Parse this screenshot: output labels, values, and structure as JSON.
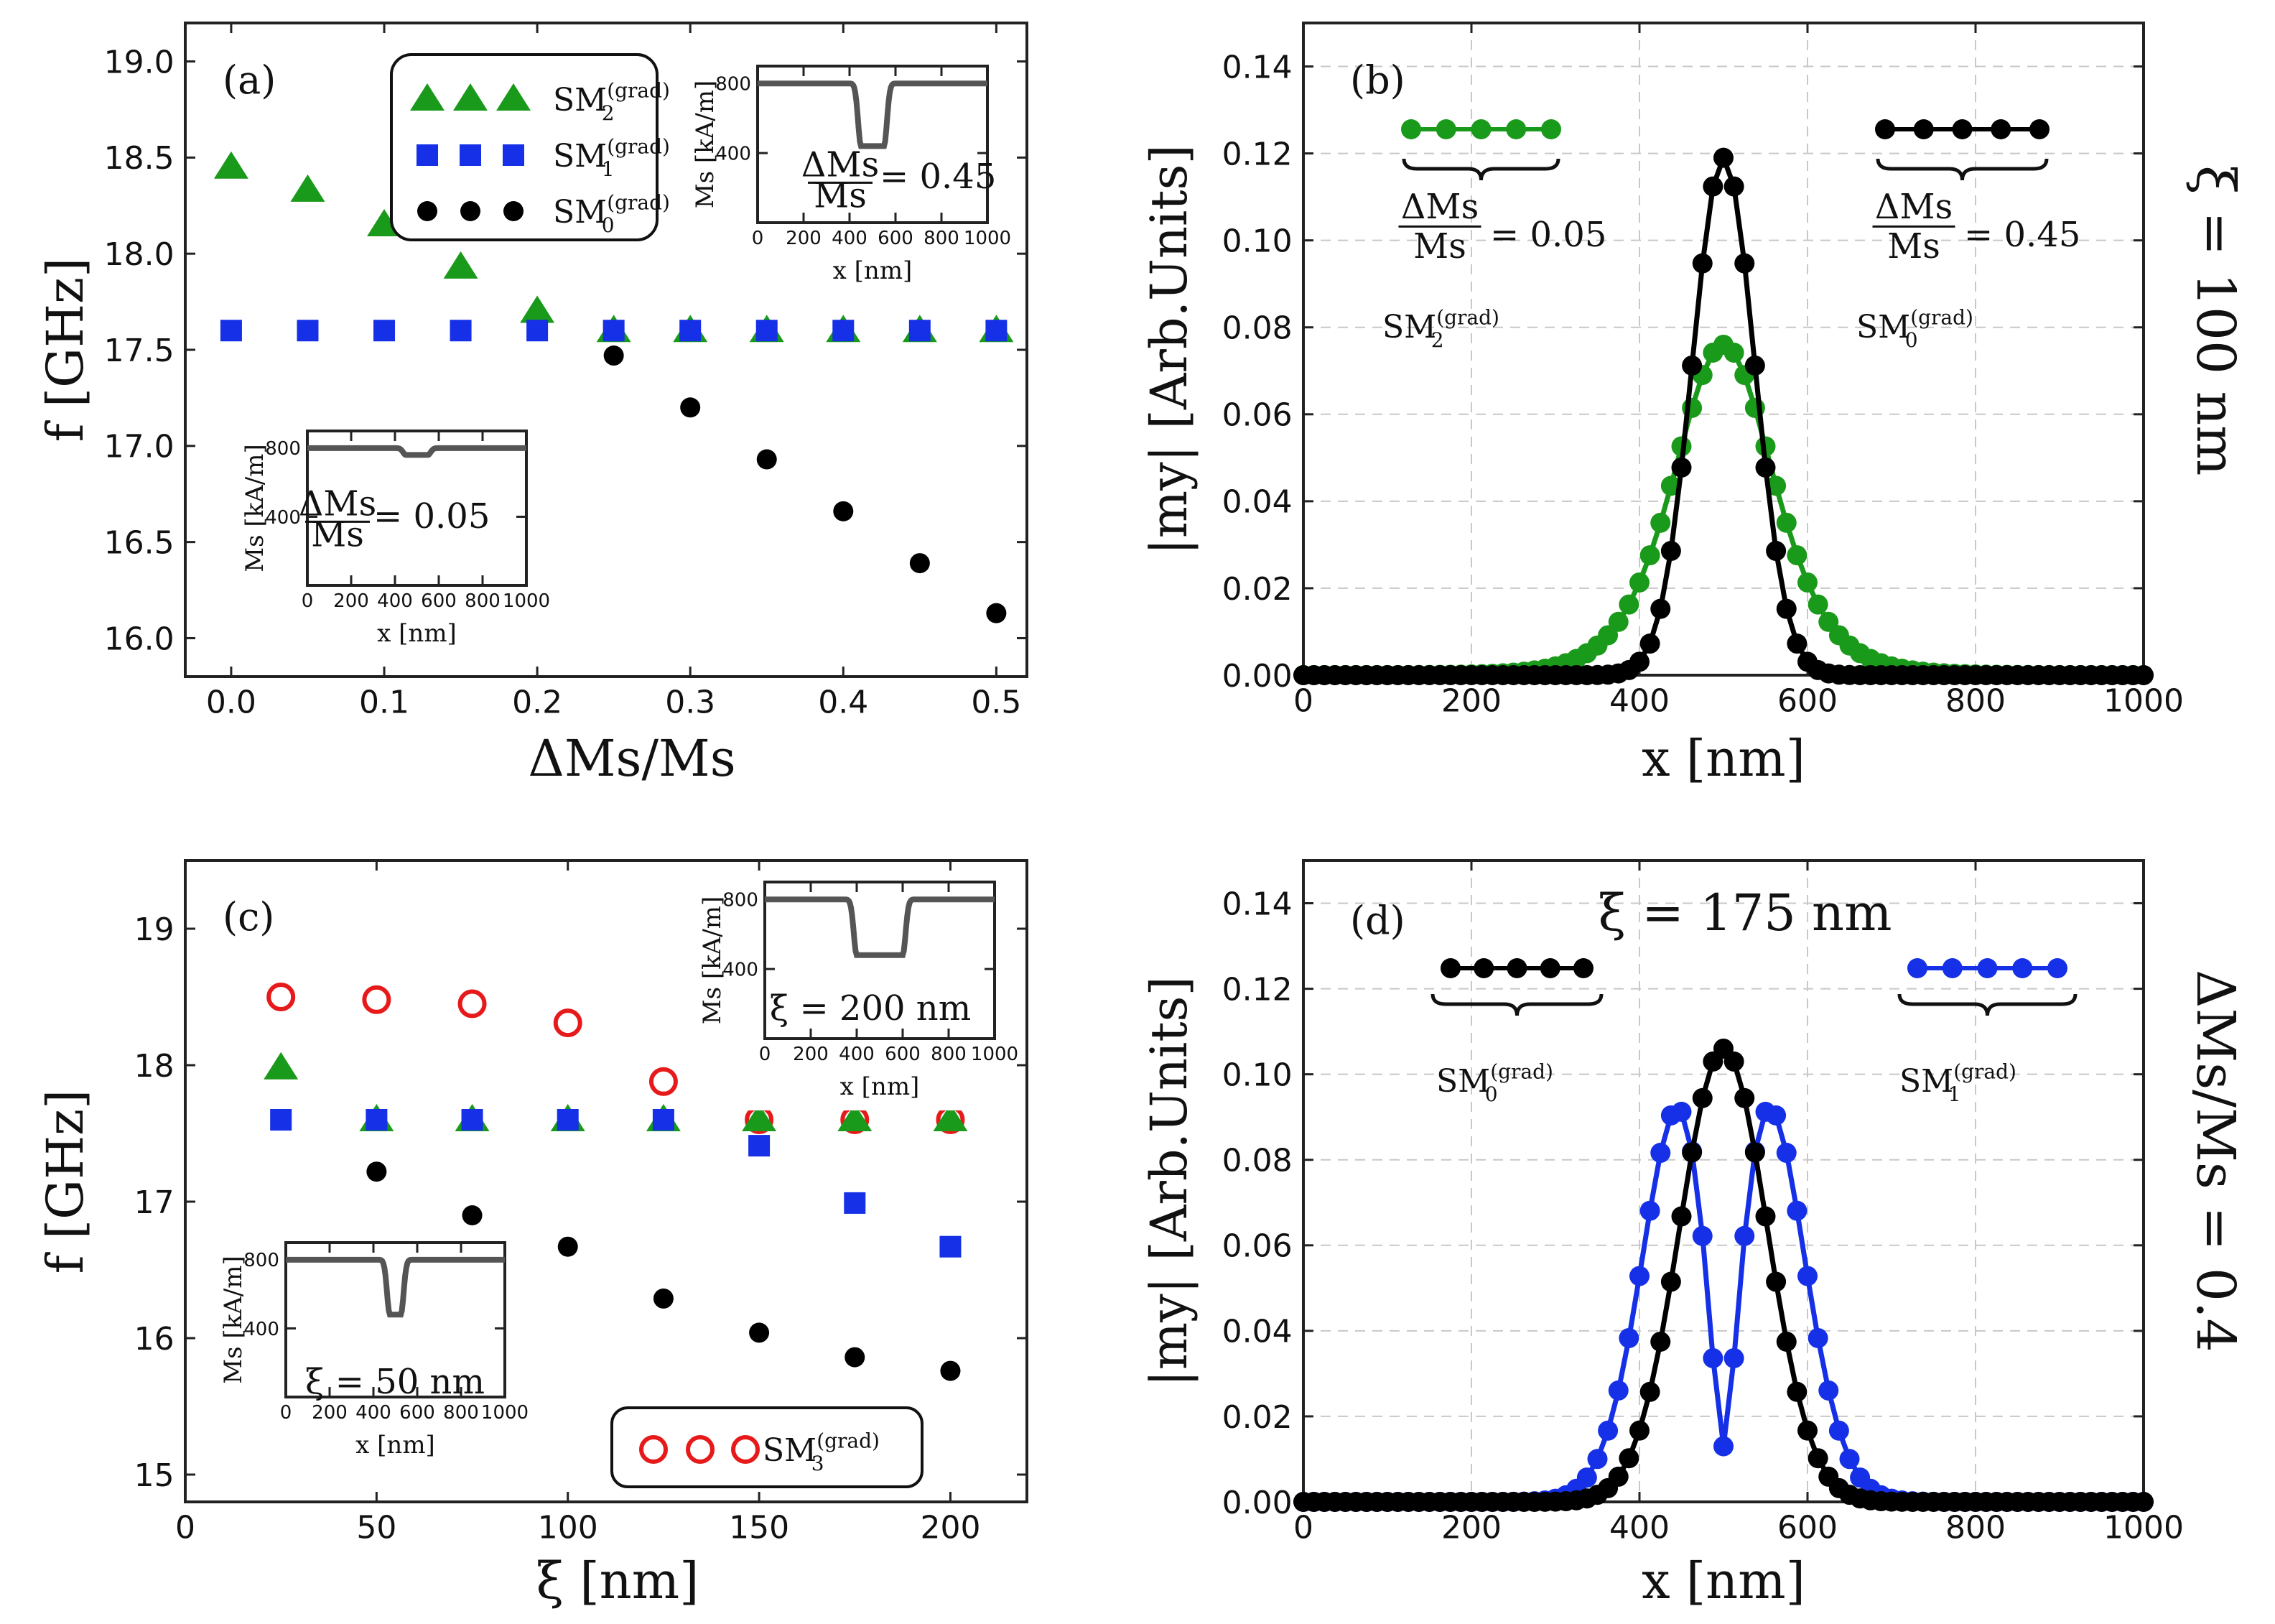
{
  "figure": {
    "side_label_top": "ξ = 100 nm",
    "side_label_bottom": "ΔMs/Ms = 0.4"
  },
  "colors": {
    "green": "#1a9a1a",
    "blue": "#1530e6",
    "black": "#000000",
    "red": "#e61a1a",
    "profile": "#555555",
    "grid": "#c8c8c8"
  },
  "chart_data": [
    {
      "panel": "(a)",
      "type": "scatter",
      "xlabel": "ΔMs/Ms",
      "ylabel": "f [GHz]",
      "xlim": [
        -0.03,
        0.52
      ],
      "ylim": [
        15.8,
        19.2
      ],
      "xticks": [
        "0.0",
        "0.1",
        "0.2",
        "0.3",
        "0.4",
        "0.5"
      ],
      "yticks": [
        "16.0",
        "16.5",
        "17.0",
        "17.5",
        "18.0",
        "18.5",
        "19.0"
      ],
      "series": [
        {
          "name": "SM2(grad)",
          "marker": "triangle",
          "color": "#1a9a1a",
          "x": [
            0,
            0.05,
            0.1,
            0.15,
            0.2,
            0.25,
            0.3,
            0.35,
            0.4,
            0.45,
            0.5
          ],
          "y": [
            18.45,
            18.33,
            18.15,
            17.93,
            17.7,
            17.6,
            17.6,
            17.6,
            17.6,
            17.6,
            17.6
          ]
        },
        {
          "name": "SM1(grad)",
          "marker": "square",
          "color": "#1530e6",
          "x": [
            0,
            0.05,
            0.1,
            0.15,
            0.2,
            0.25,
            0.3,
            0.35,
            0.4,
            0.45,
            0.5
          ],
          "y": [
            17.6,
            17.6,
            17.6,
            17.6,
            17.6,
            17.6,
            17.6,
            17.6,
            17.6,
            17.6,
            17.6
          ]
        },
        {
          "name": "SM0(grad)",
          "marker": "circle",
          "color": "#000000",
          "x": [
            0.25,
            0.3,
            0.35,
            0.4,
            0.45,
            0.5
          ],
          "y": [
            17.47,
            17.2,
            16.93,
            16.66,
            16.39,
            16.13
          ]
        }
      ],
      "legend": [
        {
          "base": "SM",
          "sub": "2",
          "sup": "(grad)"
        },
        {
          "base": "SM",
          "sub": "1",
          "sup": "(grad)"
        },
        {
          "base": "SM",
          "sub": "0",
          "sup": "(grad)"
        }
      ],
      "insets": [
        {
          "annotation": "= 0.45",
          "frac_num": "ΔMs",
          "frac_den": "Ms",
          "ylabel": "Ms [kA/m]",
          "xlabel": "x [nm]",
          "xticks": [
            "0",
            "200",
            "400",
            "600",
            "800",
            "1000"
          ],
          "yticks": [
            "400",
            "800"
          ],
          "dip_depth": 0.45,
          "dip_width_nm": 100
        },
        {
          "annotation": "= 0.05",
          "frac_num": "ΔMs",
          "frac_den": "Ms",
          "ylabel": "Ms [kA/m]",
          "xlabel": "x [nm]",
          "xticks": [
            "0",
            "200",
            "400",
            "600",
            "800",
            "1000"
          ],
          "yticks": [
            "400",
            "800"
          ],
          "dip_depth": 0.05,
          "dip_width_nm": 100
        }
      ]
    },
    {
      "panel": "(b)",
      "type": "line",
      "xlabel": "x [nm]",
      "ylabel": "|my| [Arb.Units]",
      "xlim": [
        0,
        1000
      ],
      "ylim": [
        0,
        0.15
      ],
      "xticks": [
        "0",
        "200",
        "400",
        "600",
        "800",
        "1000"
      ],
      "yticks": [
        "0.00",
        "0.02",
        "0.04",
        "0.06",
        "0.08",
        "0.10",
        "0.12",
        "0.14"
      ],
      "series": [
        {
          "name": "SM2(grad) ΔMs/Ms = 0.05",
          "color": "#1a9a1a",
          "profile": "sech",
          "amplitude": 0.076,
          "center": 500,
          "width": 80,
          "step": 12.5
        },
        {
          "name": "SM0(grad) ΔMs/Ms = 0.45",
          "color": "#000000",
          "profile": "gauss",
          "amplitude": 0.119,
          "center": 500,
          "width": 37,
          "step": 12.5
        }
      ],
      "annotations": [
        {
          "value": "= 0.05",
          "frac_num": "ΔMs",
          "frac_den": "Ms",
          "mode_base": "SM",
          "mode_sub": "2",
          "mode_sup": "(grad)"
        },
        {
          "value": "= 0.45",
          "frac_num": "ΔMs",
          "frac_den": "Ms",
          "mode_base": "SM",
          "mode_sub": "0",
          "mode_sup": "(grad)"
        }
      ]
    },
    {
      "panel": "(c)",
      "type": "scatter",
      "xlabel": "ξ [nm]",
      "ylabel": "f [GHz]",
      "xlim": [
        0,
        220
      ],
      "ylim": [
        14.8,
        19.5
      ],
      "xticks": [
        "0",
        "50",
        "100",
        "150",
        "200"
      ],
      "yticks": [
        "15",
        "16",
        "17",
        "18",
        "19"
      ],
      "series": [
        {
          "name": "SM3(grad)",
          "marker": "ring",
          "color": "#e61a1a",
          "x": [
            25,
            50,
            75,
            100,
            125,
            150,
            175,
            200
          ],
          "y": [
            18.5,
            18.48,
            18.45,
            18.31,
            17.88,
            17.6,
            17.6,
            17.6
          ]
        },
        {
          "name": "SM2(grad)",
          "marker": "triangle",
          "color": "#1a9a1a",
          "x": [
            25,
            50,
            75,
            100,
            125,
            150,
            175,
            200
          ],
          "y": [
            17.98,
            17.6,
            17.6,
            17.6,
            17.6,
            17.6,
            17.6,
            17.6
          ]
        },
        {
          "name": "SM1(grad)",
          "marker": "square",
          "color": "#1530e6",
          "x": [
            25,
            50,
            75,
            100,
            125,
            150,
            175,
            200
          ],
          "y": [
            17.6,
            17.6,
            17.6,
            17.6,
            17.6,
            17.41,
            16.99,
            16.67
          ]
        },
        {
          "name": "SM0(grad)",
          "marker": "circle",
          "color": "#000000",
          "x": [
            50,
            75,
            100,
            125,
            150,
            175,
            200
          ],
          "y": [
            17.22,
            16.9,
            16.67,
            16.29,
            16.04,
            15.86,
            15.76
          ]
        }
      ],
      "legend": [
        {
          "base": "SM",
          "sub": "3",
          "sup": "(grad)"
        }
      ],
      "insets": [
        {
          "annotation": "ξ = 200 nm",
          "ylabel": "Ms [kA/m]",
          "xlabel": "x [nm]",
          "xticks": [
            "0",
            "200",
            "400",
            "600",
            "800",
            "1000"
          ],
          "yticks": [
            "400",
            "800"
          ],
          "dip_depth": 0.4,
          "dip_width_nm": 200
        },
        {
          "annotation": "ξ = 50 nm",
          "ylabel": "Ms [kA/m]",
          "xlabel": "x [nm]",
          "xticks": [
            "0",
            "200",
            "400",
            "600",
            "800",
            "1000"
          ],
          "yticks": [
            "400",
            "800"
          ],
          "dip_depth": 0.4,
          "dip_width_nm": 50
        }
      ]
    },
    {
      "panel": "(d)",
      "type": "line",
      "title": "ξ = 175 nm",
      "xlabel": "x [nm]",
      "ylabel": "|my| [Arb.Units]",
      "xlim": [
        0,
        1000
      ],
      "ylim": [
        0,
        0.15
      ],
      "xticks": [
        "0",
        "200",
        "400",
        "600",
        "800",
        "1000"
      ],
      "yticks": [
        "0.00",
        "0.02",
        "0.04",
        "0.06",
        "0.08",
        "0.10",
        "0.12",
        "0.14"
      ],
      "series": [
        {
          "name": "SM1(grad)",
          "color": "#1530e6",
          "profile": "node",
          "amplitude": 0.092,
          "center": 500,
          "width": 55,
          "floor": 0.013,
          "step": 12.5
        },
        {
          "name": "SM0(grad)",
          "color": "#000000",
          "profile": "gauss",
          "amplitude": 0.106,
          "center": 500,
          "width": 52,
          "step": 12.5
        }
      ],
      "annotations": [
        {
          "mode_base": "SM",
          "mode_sub": "0",
          "mode_sup": "(grad)"
        },
        {
          "mode_base": "SM",
          "mode_sub": "1",
          "mode_sup": "(grad)"
        }
      ]
    }
  ]
}
